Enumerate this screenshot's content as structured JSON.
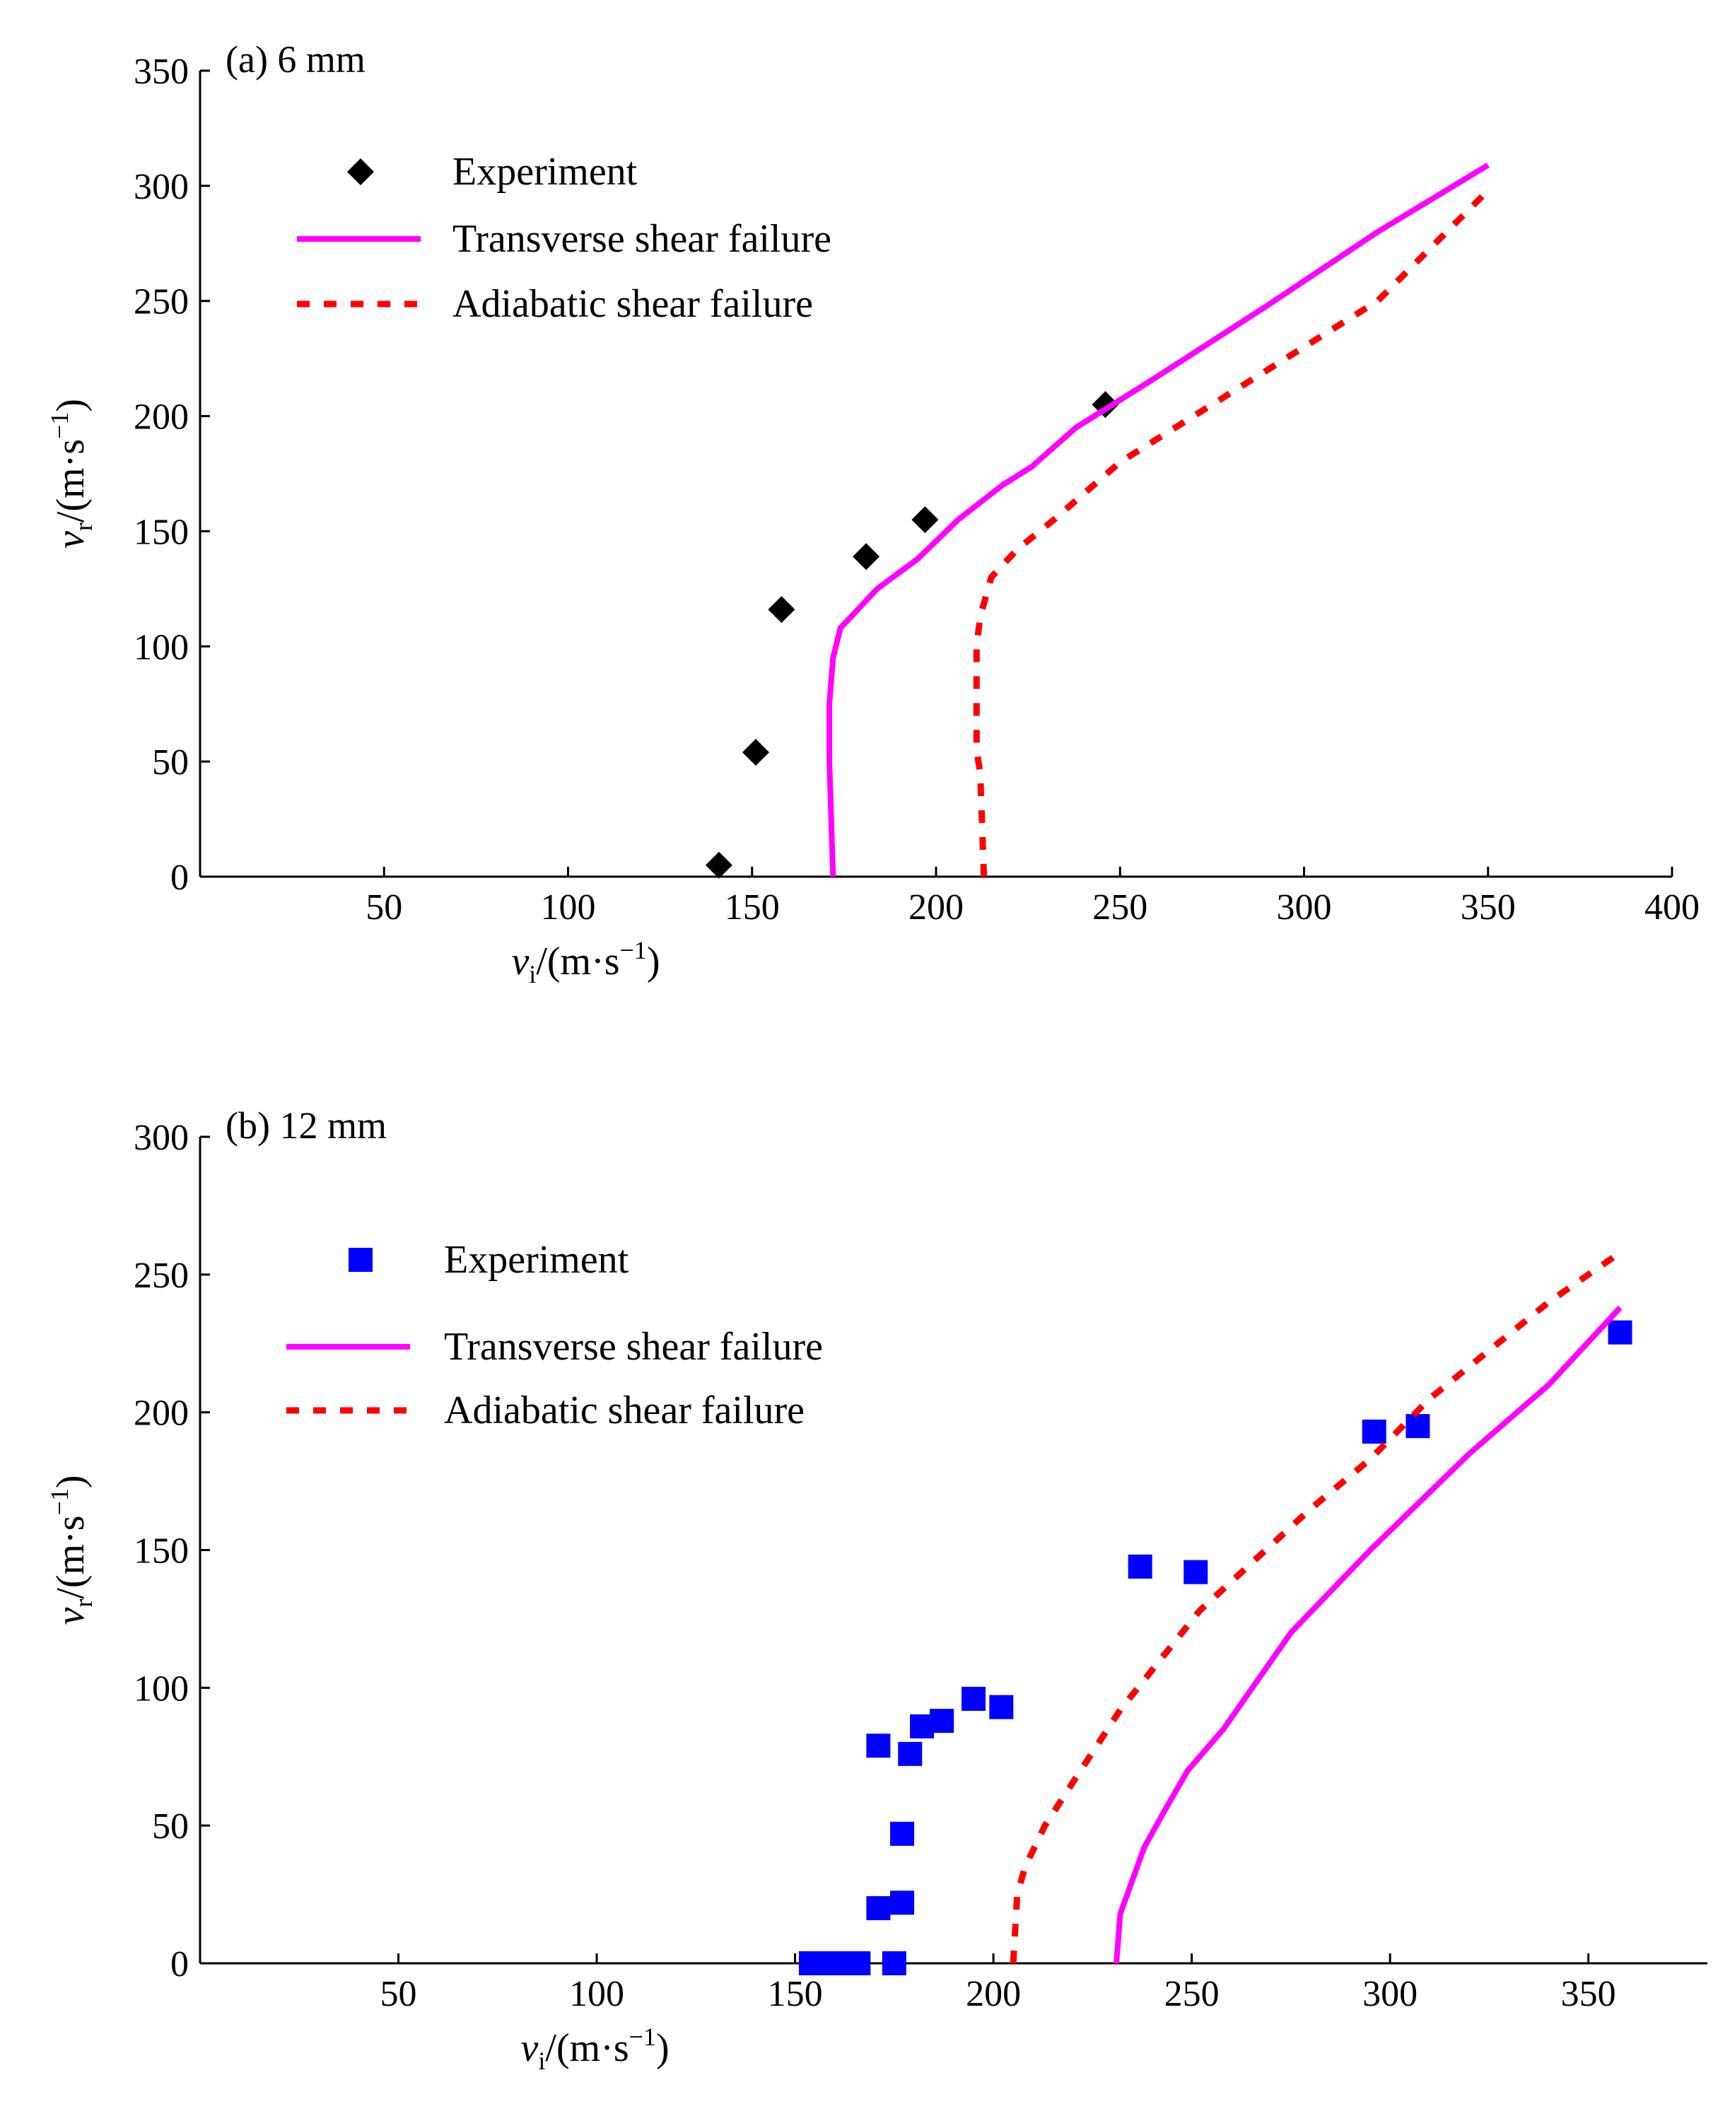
{
  "chart_data": [
    {
      "type": "line",
      "title": "(a) 6 mm",
      "xlabel": {
        "symbol": "v",
        "sub": "i",
        "unit": "/(m·s",
        "sup": "−1",
        "close": ")"
      },
      "ylabel": {
        "symbol": "v",
        "sub": "r",
        "unit": "/(m·s",
        "sup": "−1",
        "close": ")"
      },
      "xlim": [
        0,
        400
      ],
      "ylim": [
        0,
        350
      ],
      "xticks": [
        50,
        100,
        150,
        200,
        250,
        300,
        350,
        400
      ],
      "yticks": [
        0,
        50,
        100,
        150,
        200,
        250,
        300,
        350
      ],
      "grid": false,
      "legend_position": "top-left",
      "series": [
        {
          "name": "Experiment",
          "kind": "scatter",
          "marker": "diamond",
          "color": "#000000",
          "points": [
            [
              141,
              5
            ],
            [
              151,
              54
            ],
            [
              158,
              116
            ],
            [
              181,
              139
            ],
            [
              197,
              155
            ],
            [
              246,
              205
            ]
          ]
        },
        {
          "name": "Transverse shear failure",
          "kind": "line",
          "dash": "solid",
          "color": "#ff00ff",
          "points": [
            [
              172,
              0
            ],
            [
              171,
              50
            ],
            [
              171,
              75
            ],
            [
              172,
              95
            ],
            [
              174,
              108
            ],
            [
              177,
              113
            ],
            [
              184,
              125
            ],
            [
              195,
              138
            ],
            [
              206,
              155
            ],
            [
              218,
              170
            ],
            [
              226,
              178
            ],
            [
              238,
              195
            ],
            [
              258,
              215
            ],
            [
              290,
              248
            ],
            [
              320,
              280
            ],
            [
              350,
              309
            ]
          ]
        },
        {
          "name": "Adiabatic shear failure",
          "kind": "line",
          "dash": "dashed",
          "color": "#ff0000",
          "points": [
            [
              213,
              0
            ],
            [
              212,
              45
            ],
            [
              211,
              55
            ],
            [
              211,
              100
            ],
            [
              212,
              113
            ],
            [
              215,
              130
            ],
            [
              222,
              142
            ],
            [
              232,
              155
            ],
            [
              250,
              180
            ],
            [
              280,
              210
            ],
            [
              320,
              250
            ],
            [
              350,
              298
            ]
          ]
        }
      ]
    },
    {
      "type": "line",
      "title": "(b) 12 mm",
      "xlabel": {
        "symbol": "v",
        "sub": "i",
        "unit": "/(m·s",
        "sup": "−1",
        "close": ")"
      },
      "ylabel": {
        "symbol": "v",
        "sub": "r",
        "unit": "/(m·s",
        "sup": "−1",
        "close": ")"
      },
      "xlim": [
        0,
        380
      ],
      "ylim": [
        0,
        300
      ],
      "xticks": [
        50,
        100,
        150,
        200,
        250,
        300,
        350
      ],
      "yticks": [
        0,
        50,
        100,
        150,
        200,
        250,
        300
      ],
      "grid": false,
      "legend_position": "top-left",
      "series": [
        {
          "name": "Experiment",
          "kind": "scatter",
          "marker": "square",
          "color": "#0000ff",
          "points": [
            [
              154,
              0
            ],
            [
              160,
              0
            ],
            [
              163,
              0
            ],
            [
              166,
              0
            ],
            [
              175,
              0
            ],
            [
              171,
              20
            ],
            [
              177,
              22
            ],
            [
              177,
              47
            ],
            [
              171,
              79
            ],
            [
              179,
              76
            ],
            [
              182,
              86
            ],
            [
              187,
              88
            ],
            [
              195,
              96
            ],
            [
              202,
              93
            ],
            [
              237,
              144
            ],
            [
              251,
              142
            ],
            [
              296,
              193
            ],
            [
              307,
              195
            ],
            [
              358,
              229
            ]
          ]
        },
        {
          "name": "Transverse shear failure",
          "kind": "line",
          "dash": "solid",
          "color": "#ff00ff",
          "points": [
            [
              231,
              0
            ],
            [
              232,
              18
            ],
            [
              235,
              30
            ],
            [
              238,
              42
            ],
            [
              243,
              55
            ],
            [
              249,
              70
            ],
            [
              258,
              85
            ],
            [
              275,
              120
            ],
            [
              295,
              150
            ],
            [
              320,
              185
            ],
            [
              340,
              210
            ],
            [
              358,
              238
            ]
          ]
        },
        {
          "name": "Adiabatic shear failure",
          "kind": "line",
          "dash": "dashed",
          "color": "#ff0000",
          "points": [
            [
              205,
              0
            ],
            [
              206,
              25
            ],
            [
              208,
              35
            ],
            [
              213,
              50
            ],
            [
              222,
              70
            ],
            [
              232,
              92
            ],
            [
              252,
              128
            ],
            [
              280,
              165
            ],
            [
              295,
              183
            ],
            [
              310,
              205
            ],
            [
              340,
              240
            ],
            [
              358,
              258
            ]
          ]
        }
      ]
    }
  ]
}
